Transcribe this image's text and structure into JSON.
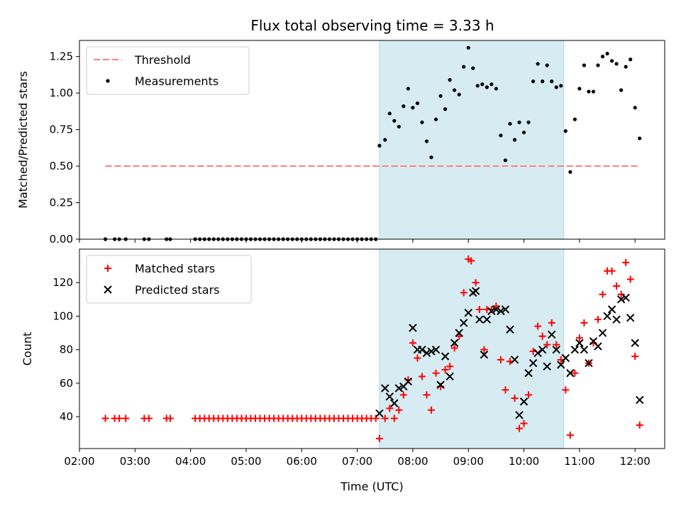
{
  "title": "Flux total observing time = 3.33 h",
  "colors": {
    "threshold": "#ff7f7f",
    "measurements": "#000000",
    "matched": "#ff0000",
    "predicted": "#000000",
    "span": "#add8e6"
  },
  "chart_data": [
    {
      "type": "scatter",
      "ylabel": "Matched/Predicted stars",
      "ylim": [
        0,
        1.36
      ],
      "yticks": [
        0,
        0.25,
        0.5,
        0.75,
        1.0,
        1.25
      ],
      "ytick_labels": [
        "0.00",
        "0.25",
        "0.50",
        "0.75",
        "1.00",
        "1.25"
      ],
      "xlim": [
        "02:00",
        "12:32"
      ],
      "highlight_span": [
        "07:24",
        "10:43"
      ],
      "legend": {
        "position": "upper left",
        "entries": [
          "Threshold",
          "Measurements"
        ]
      },
      "threshold": {
        "name": "Threshold",
        "x": [
          "02:28",
          "12:05"
        ],
        "y": 0.5
      },
      "series": [
        {
          "name": "Measurements",
          "marker": "dot",
          "x": [
            "02:28",
            "02:38",
            "02:43",
            "02:50",
            "03:10",
            "03:15",
            "03:34",
            "03:38",
            "04:05",
            "04:10",
            "04:15",
            "04:20",
            "04:25",
            "04:30",
            "04:35",
            "04:40",
            "04:45",
            "04:50",
            "04:55",
            "05:00",
            "05:05",
            "05:10",
            "05:15",
            "05:20",
            "05:25",
            "05:30",
            "05:35",
            "05:40",
            "05:45",
            "05:50",
            "05:55",
            "06:00",
            "06:05",
            "06:10",
            "06:15",
            "06:20",
            "06:25",
            "06:30",
            "06:35",
            "06:40",
            "06:45",
            "06:50",
            "06:55",
            "07:00",
            "07:05",
            "07:10",
            "07:15",
            "07:20",
            "07:24",
            "07:30",
            "07:35",
            "07:40",
            "07:45",
            "07:50",
            "07:55",
            "08:00",
            "08:05",
            "08:10",
            "08:15",
            "08:20",
            "08:25",
            "08:30",
            "08:35",
            "08:40",
            "08:45",
            "08:50",
            "08:55",
            "09:00",
            "09:05",
            "09:10",
            "09:15",
            "09:20",
            "09:25",
            "09:30",
            "09:35",
            "09:40",
            "09:45",
            "09:50",
            "09:55",
            "10:00",
            "10:05",
            "10:10",
            "10:15",
            "10:20",
            "10:25",
            "10:30",
            "10:35",
            "10:40",
            "10:45",
            "10:50",
            "10:55",
            "11:00",
            "11:05",
            "11:10",
            "11:15",
            "11:20",
            "11:25",
            "11:30",
            "11:35",
            "11:40",
            "11:45",
            "11:50",
            "11:55",
            "12:00",
            "12:05"
          ],
          "y": [
            0,
            0,
            0,
            0,
            0,
            0,
            0,
            0,
            0,
            0,
            0,
            0,
            0,
            0,
            0,
            0,
            0,
            0,
            0,
            0,
            0,
            0,
            0,
            0,
            0,
            0,
            0,
            0,
            0,
            0,
            0,
            0,
            0,
            0,
            0,
            0,
            0,
            0,
            0,
            0,
            0,
            0,
            0,
            0,
            0,
            0,
            0,
            0,
            0.64,
            0.68,
            0.86,
            0.81,
            0.77,
            0.91,
            1.03,
            0.9,
            0.93,
            0.8,
            0.67,
            0.56,
            0.82,
            0.98,
            0.89,
            1.09,
            1.02,
            0.99,
            1.18,
            1.31,
            1.17,
            1.05,
            1.06,
            1.04,
            1.06,
            1.03,
            0.71,
            0.54,
            0.79,
            0.68,
            0.8,
            0.73,
            0.8,
            1.08,
            1.2,
            1.08,
            1.19,
            1.08,
            1.04,
            1.05,
            0.74,
            0.46,
            0.82,
            1.03,
            1.19,
            1.01,
            1.01,
            1.19,
            1.25,
            1.27,
            1.22,
            1.2,
            1.02,
            1.18,
            1.23,
            0.9,
            0.69
          ]
        }
      ]
    },
    {
      "type": "scatter",
      "ylabel": "Count",
      "xlabel": "Time (UTC)",
      "ylim": [
        21,
        140
      ],
      "yticks": [
        40,
        60,
        80,
        100,
        120
      ],
      "ytick_labels": [
        "40",
        "60",
        "80",
        "100",
        "120"
      ],
      "xlim": [
        "02:00",
        "12:32"
      ],
      "xticks": [
        "02:00",
        "03:00",
        "04:00",
        "05:00",
        "06:00",
        "07:00",
        "08:00",
        "09:00",
        "10:00",
        "11:00",
        "12:00"
      ],
      "xtick_labels": [
        "02:00",
        "03:00",
        "04:00",
        "05:00",
        "06:00",
        "07:00",
        "08:00",
        "09:00",
        "10:00",
        "11:00",
        "12:00"
      ],
      "highlight_span": [
        "07:24",
        "10:43"
      ],
      "legend": {
        "position": "upper left",
        "entries": [
          "Matched stars",
          "Predicted stars"
        ]
      },
      "series": [
        {
          "name": "Matched stars",
          "marker": "plus",
          "points": [
            [
              "02:28",
              39
            ],
            [
              "02:38",
              39
            ],
            [
              "02:43",
              39
            ],
            [
              "02:50",
              39
            ],
            [
              "03:10",
              39
            ],
            [
              "03:15",
              39
            ],
            [
              "03:34",
              39
            ],
            [
              "03:38",
              39
            ],
            [
              "04:05",
              39
            ],
            [
              "04:10",
              39
            ],
            [
              "04:15",
              39
            ],
            [
              "04:20",
              39
            ],
            [
              "04:25",
              39
            ],
            [
              "04:30",
              39
            ],
            [
              "04:35",
              39
            ],
            [
              "04:40",
              39
            ],
            [
              "04:45",
              39
            ],
            [
              "04:50",
              39
            ],
            [
              "04:55",
              39
            ],
            [
              "05:00",
              39
            ],
            [
              "05:05",
              39
            ],
            [
              "05:10",
              39
            ],
            [
              "05:15",
              39
            ],
            [
              "05:20",
              39
            ],
            [
              "05:25",
              39
            ],
            [
              "05:30",
              39
            ],
            [
              "05:35",
              39
            ],
            [
              "05:40",
              39
            ],
            [
              "05:45",
              39
            ],
            [
              "05:50",
              39
            ],
            [
              "05:55",
              39
            ],
            [
              "06:00",
              39
            ],
            [
              "06:05",
              39
            ],
            [
              "06:10",
              39
            ],
            [
              "06:15",
              39
            ],
            [
              "06:20",
              39
            ],
            [
              "06:25",
              39
            ],
            [
              "06:30",
              39
            ],
            [
              "06:35",
              39
            ],
            [
              "06:40",
              39
            ],
            [
              "06:45",
              39
            ],
            [
              "06:50",
              39
            ],
            [
              "06:55",
              39
            ],
            [
              "07:00",
              39
            ],
            [
              "07:05",
              39
            ],
            [
              "07:10",
              39
            ],
            [
              "07:15",
              39
            ],
            [
              "07:20",
              39
            ],
            [
              "07:24",
              27
            ],
            [
              "07:30",
              39
            ],
            [
              "07:35",
              45
            ],
            [
              "07:40",
              39
            ],
            [
              "07:45",
              44
            ],
            [
              "07:50",
              53
            ],
            [
              "07:55",
              62
            ],
            [
              "08:00",
              84
            ],
            [
              "08:05",
              75
            ],
            [
              "08:10",
              64
            ],
            [
              "08:15",
              53
            ],
            [
              "08:20",
              44
            ],
            [
              "08:25",
              66
            ],
            [
              "08:30",
              58
            ],
            [
              "08:35",
              68
            ],
            [
              "08:40",
              70
            ],
            [
              "08:45",
              81
            ],
            [
              "08:50",
              88
            ],
            [
              "08:55",
              114
            ],
            [
              "09:00",
              134
            ],
            [
              "09:03",
              133
            ],
            [
              "09:08",
              120
            ],
            [
              "09:12",
              104
            ],
            [
              "09:17",
              80
            ],
            [
              "09:20",
              104
            ],
            [
              "09:25",
              104
            ],
            [
              "09:30",
              106
            ],
            [
              "09:35",
              74
            ],
            [
              "09:40",
              56
            ],
            [
              "09:45",
              73
            ],
            [
              "09:50",
              51
            ],
            [
              "09:55",
              33
            ],
            [
              "10:00",
              36
            ],
            [
              "10:05",
              53
            ],
            [
              "10:10",
              79
            ],
            [
              "10:15",
              94
            ],
            [
              "10:20",
              88
            ],
            [
              "10:25",
              83
            ],
            [
              "10:30",
              96
            ],
            [
              "10:35",
              83
            ],
            [
              "10:40",
              74
            ],
            [
              "10:45",
              56
            ],
            [
              "10:50",
              29
            ],
            [
              "10:55",
              66
            ],
            [
              "11:00",
              87
            ],
            [
              "11:05",
              96
            ],
            [
              "11:10",
              72
            ],
            [
              "11:15",
              84
            ],
            [
              "11:20",
              98
            ],
            [
              "11:25",
              113
            ],
            [
              "11:30",
              127
            ],
            [
              "11:35",
              127
            ],
            [
              "11:40",
              118
            ],
            [
              "11:45",
              113
            ],
            [
              "11:50",
              132
            ],
            [
              "11:55",
              122
            ],
            [
              "12:00",
              76
            ],
            [
              "12:05",
              35
            ]
          ]
        },
        {
          "name": "Predicted stars",
          "marker": "x",
          "points": [
            [
              "07:24",
              42
            ],
            [
              "07:30",
              57
            ],
            [
              "07:35",
              52
            ],
            [
              "07:40",
              48
            ],
            [
              "07:45",
              57
            ],
            [
              "07:50",
              58
            ],
            [
              "07:55",
              61
            ],
            [
              "08:00",
              93
            ],
            [
              "08:05",
              80
            ],
            [
              "08:10",
              80
            ],
            [
              "08:15",
              78
            ],
            [
              "08:20",
              79
            ],
            [
              "08:25",
              80
            ],
            [
              "08:30",
              59
            ],
            [
              "08:35",
              76
            ],
            [
              "08:40",
              64
            ],
            [
              "08:45",
              84
            ],
            [
              "08:50",
              90
            ],
            [
              "08:55",
              96
            ],
            [
              "09:00",
              102
            ],
            [
              "09:05",
              114
            ],
            [
              "09:08",
              115
            ],
            [
              "09:12",
              98
            ],
            [
              "09:17",
              77
            ],
            [
              "09:20",
              98
            ],
            [
              "09:25",
              103
            ],
            [
              "09:30",
              104
            ],
            [
              "09:35",
              103
            ],
            [
              "09:40",
              104
            ],
            [
              "09:45",
              92
            ],
            [
              "09:50",
              74
            ],
            [
              "09:55",
              41
            ],
            [
              "10:00",
              49
            ],
            [
              "10:05",
              66
            ],
            [
              "10:10",
              72
            ],
            [
              "10:15",
              78
            ],
            [
              "10:20",
              80
            ],
            [
              "10:25",
              70
            ],
            [
              "10:30",
              89
            ],
            [
              "10:35",
              80
            ],
            [
              "10:40",
              71
            ],
            [
              "10:45",
              75
            ],
            [
              "10:50",
              66
            ],
            [
              "10:55",
              80
            ],
            [
              "11:00",
              84
            ],
            [
              "11:05",
              80
            ],
            [
              "11:10",
              72
            ],
            [
              "11:15",
              85
            ],
            [
              "11:20",
              82
            ],
            [
              "11:25",
              90
            ],
            [
              "11:30",
              100
            ],
            [
              "11:35",
              104
            ],
            [
              "11:40",
              98
            ],
            [
              "11:45",
              110
            ],
            [
              "11:50",
              111
            ],
            [
              "11:55",
              99
            ],
            [
              "12:00",
              84
            ],
            [
              "12:05",
              50
            ]
          ]
        }
      ]
    }
  ]
}
